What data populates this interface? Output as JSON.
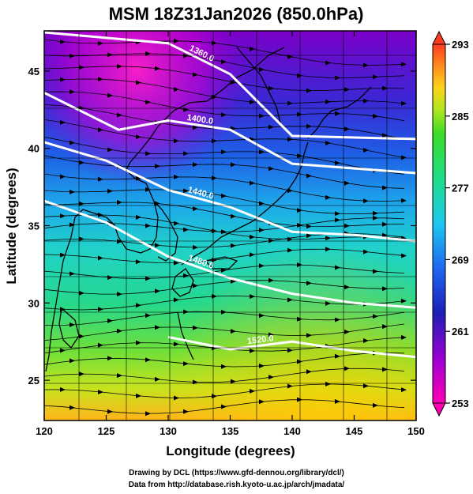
{
  "title": "MSM 18Z31Jan2026 (850.0hPa)",
  "map": {
    "xlabel": "Longitude (degrees)",
    "ylabel": "Latitude  (degrees)",
    "xticks": [
      120,
      125,
      130,
      135,
      140,
      145,
      150
    ],
    "yticks": [
      25,
      30,
      35,
      40,
      45
    ],
    "xlim": [
      120,
      150
    ],
    "ylim": [
      22.4,
      47.6
    ]
  },
  "colorbar": {
    "labels": [
      293,
      285,
      277,
      269,
      261,
      253
    ],
    "range": [
      253,
      293
    ]
  },
  "contours": [
    {
      "label": "1360.0",
      "lat_points": [
        [
          120,
          47.5
        ],
        [
          130,
          46.8
        ],
        [
          135,
          44.8
        ],
        [
          140,
          40.8
        ],
        [
          150,
          40.6
        ]
      ]
    },
    {
      "label": "1400.0",
      "lat_points": [
        [
          120,
          43.6
        ],
        [
          126,
          41.2
        ],
        [
          130,
          41.8
        ],
        [
          135,
          41.2
        ],
        [
          140,
          39.0
        ],
        [
          150,
          38.4
        ]
      ]
    },
    {
      "label": "1440.0",
      "lat_points": [
        [
          120,
          40.4
        ],
        [
          125,
          39.2
        ],
        [
          130,
          37.3
        ],
        [
          135,
          36.2
        ],
        [
          140,
          34.6
        ],
        [
          145,
          34.4
        ],
        [
          150,
          34.0
        ]
      ]
    },
    {
      "label": "1480.0",
      "lat_points": [
        [
          120,
          36.6
        ],
        [
          125,
          35.2
        ],
        [
          130,
          33.0
        ],
        [
          135,
          31.6
        ],
        [
          140,
          30.6
        ],
        [
          145,
          30.0
        ],
        [
          150,
          29.7
        ]
      ]
    },
    {
      "label": "1520.0",
      "lat_points": [
        [
          130,
          27.8
        ],
        [
          135,
          27.0
        ],
        [
          140,
          27.5
        ],
        [
          145,
          26.9
        ],
        [
          150,
          26.5
        ]
      ]
    }
  ],
  "credits": {
    "line1": "Drawing by DCL (https://www.gfd-dennou.org/library/dcl/)",
    "line2": "Data from http://database.rish.kyoto-u.ac.jp/arch/jmadata/"
  }
}
